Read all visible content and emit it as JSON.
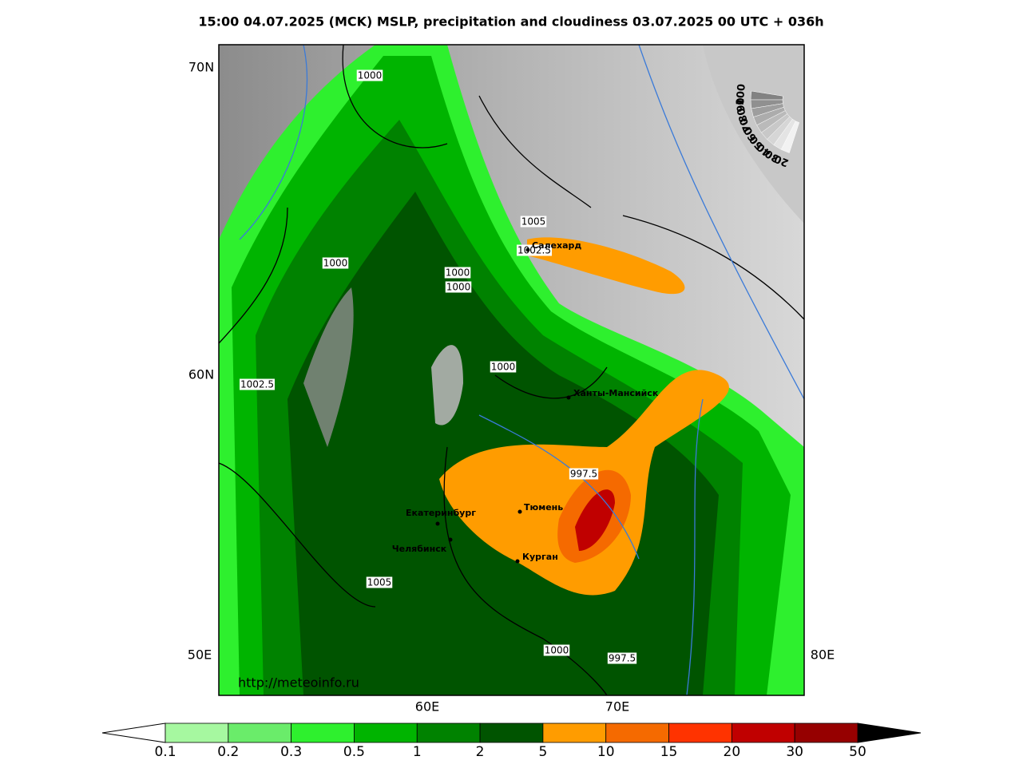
{
  "title": "15:00 04.07.2025 (MCK) MSLP, precipitation and cloudiness 03.07.2025 00 UTC + 036h",
  "map": {
    "lat_labels": [
      "70N",
      "60N"
    ],
    "lon_labels": [
      "50E",
      "80E",
      "60E",
      "70E"
    ],
    "isobar_labels": [
      "1000",
      "1005",
      "1002.5",
      "1000",
      "1000",
      "1000",
      "1000",
      "1002.5",
      "997.5",
      "1005",
      "1000",
      "997.5"
    ],
    "cities": [
      "Салехард",
      "Ханты-Мансийск",
      "Екатеринбург",
      "Тюмень",
      "Челябинск",
      "Курган"
    ],
    "url": "http://meteoinfo.ru"
  },
  "cloud_scale": {
    "labels": [
      100,
      90,
      80,
      70,
      60,
      50,
      40,
      30,
      20
    ]
  },
  "colorbar": {
    "bounds": [
      0.1,
      0.2,
      0.3,
      0.5,
      1,
      2,
      5,
      10,
      15,
      20,
      30,
      50
    ],
    "colors": [
      "#a6f8a0",
      "#6aec6a",
      "#2ef02e",
      "#00b400",
      "#008200",
      "#005400",
      "#ff9c00",
      "#f56a00",
      "#ff3300",
      "#c00000",
      "#960000"
    ]
  }
}
